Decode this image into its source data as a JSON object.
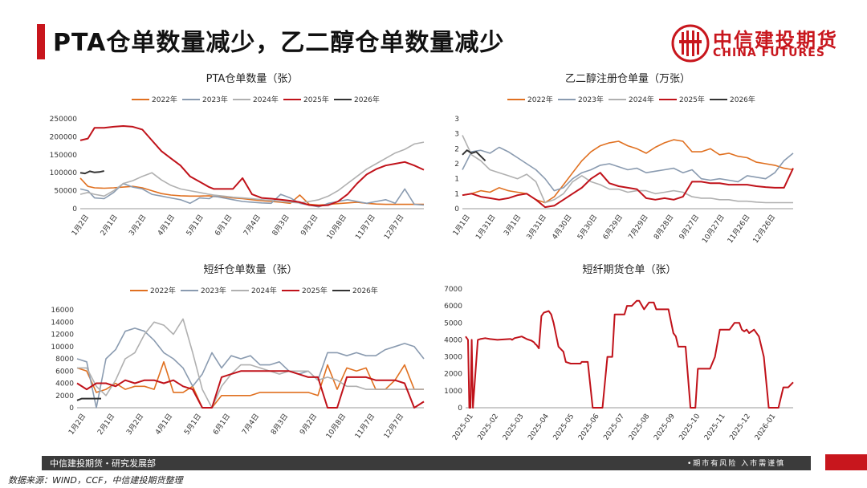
{
  "page": {
    "title": "PTA仓单数量减少，乙二醇仓单数量减少",
    "accent": "#c8161d"
  },
  "logo": {
    "name_cn": "中信建投期货",
    "name_en": "CHINA FUTURES",
    "icon": "china-futures-logo"
  },
  "footer": {
    "left": "中信建投期货・研究发展部",
    "right": "•期市有风险  入市需谨慎",
    "source": "数据来源：WIND，CCF，中信建投期货整理"
  },
  "series_colors": {
    "2022年": "#e07020",
    "2023年": "#8a9bb0",
    "2024年": "#b0b0b0",
    "2025年": "#c0121a",
    "2026年": "#333333",
    "futures": "#c0121a"
  },
  "chart_data": [
    {
      "type": "line",
      "title": "PTA仓单数量（张）",
      "legend": "top",
      "ylim": [
        0,
        250000
      ],
      "yticks": [
        "0",
        "50000",
        "100000",
        "150000",
        "200000",
        "250000"
      ],
      "xticks": [
        "1月2日",
        "2月1日",
        "3月2日",
        "4月1日",
        "5月1日",
        "6月1日",
        "7月4日",
        "8月3日",
        "9月2日",
        "10月8日",
        "11月7日",
        "12月7日"
      ],
      "x": [
        0,
        8,
        15,
        25,
        35,
        45,
        55,
        65,
        75,
        85,
        95,
        105,
        115,
        125,
        135,
        140,
        150,
        160,
        170,
        180,
        190,
        200,
        210,
        220,
        230,
        240,
        250,
        260,
        270,
        280,
        290,
        300,
        310,
        320,
        330,
        340,
        350,
        360
      ],
      "series": [
        {
          "name": "2022年",
          "values": [
            85000,
            62000,
            58000,
            57000,
            58000,
            60000,
            62000,
            58000,
            50000,
            42000,
            38000,
            36000,
            35000,
            35000,
            36000,
            34000,
            33000,
            30000,
            28000,
            25000,
            22000,
            20000,
            18000,
            15000,
            38000,
            12000,
            10000,
            12000,
            14000,
            16000,
            18000,
            15000,
            13000,
            12000,
            12000,
            12000,
            12000,
            12000
          ]
        },
        {
          "name": "2023年",
          "values": [
            55000,
            50000,
            30000,
            28000,
            45000,
            70000,
            60000,
            55000,
            40000,
            35000,
            30000,
            25000,
            15000,
            30000,
            28000,
            35000,
            30000,
            25000,
            20000,
            18000,
            16000,
            15000,
            40000,
            30000,
            15000,
            10000,
            5000,
            15000,
            20000,
            25000,
            20000,
            15000,
            20000,
            25000,
            15000,
            55000,
            12000,
            10000
          ]
        },
        {
          "name": "2024年",
          "values": [
            40000,
            45000,
            40000,
            35000,
            50000,
            70000,
            78000,
            90000,
            100000,
            80000,
            65000,
            55000,
            50000,
            45000,
            40000,
            38000,
            35000,
            32000,
            30000,
            28000,
            25000,
            23000,
            20000,
            18000,
            16000,
            20000,
            25000,
            35000,
            50000,
            70000,
            90000,
            110000,
            125000,
            140000,
            155000,
            165000,
            180000,
            185000
          ]
        },
        {
          "name": "2025年",
          "values": [
            190000,
            195000,
            225000,
            225000,
            228000,
            230000,
            228000,
            220000,
            190000,
            160000,
            140000,
            120000,
            90000,
            75000,
            60000,
            55000,
            55000,
            55000,
            85000,
            40000,
            30000,
            28000,
            25000,
            22000,
            18000,
            10000,
            8000,
            10000,
            20000,
            40000,
            70000,
            95000,
            110000,
            120000,
            125000,
            130000,
            120000,
            108000
          ]
        }
      ],
      "series_2026": {
        "name": "2026年",
        "x": [
          0,
          5,
          10,
          15,
          20,
          25
        ],
        "values": [
          100000,
          98000,
          104000,
          101000,
          102000,
          105000
        ]
      }
    },
    {
      "type": "line",
      "title": "乙二醇注册仓单量（万张）",
      "legend": "top",
      "ylim": [
        0,
        3
      ],
      "yticks": [
        "0",
        "1",
        "1",
        "2",
        "2",
        "3",
        "3"
      ],
      "xticks": [
        "1月1日",
        "1月31日",
        "3月1日",
        "3月31日",
        "4月30日",
        "5月30日",
        "6月29日",
        "7月29日",
        "8月28日",
        "9月27日",
        "10月27日",
        "11月26日",
        "12月26日"
      ],
      "x": [
        0,
        10,
        20,
        30,
        40,
        50,
        60,
        70,
        80,
        90,
        100,
        110,
        120,
        130,
        140,
        150,
        160,
        170,
        180,
        190,
        200,
        210,
        220,
        230,
        240,
        250,
        260,
        270,
        280,
        290,
        300,
        310,
        320,
        330,
        340,
        350,
        360
      ],
      "series": [
        {
          "name": "2022年",
          "values": [
            0.45,
            0.5,
            0.6,
            0.55,
            0.7,
            0.6,
            0.55,
            0.5,
            0.3,
            0.2,
            0.4,
            0.8,
            1.2,
            1.6,
            1.9,
            2.1,
            2.2,
            2.25,
            2.1,
            2.0,
            1.85,
            2.05,
            2.2,
            2.3,
            2.25,
            1.9,
            1.9,
            2.0,
            1.8,
            1.85,
            1.75,
            1.7,
            1.55,
            1.5,
            1.45,
            1.35,
            1.3
          ]
        },
        {
          "name": "2023年",
          "values": [
            1.3,
            1.9,
            1.95,
            1.85,
            2.05,
            1.9,
            1.7,
            1.5,
            1.3,
            1.0,
            0.6,
            0.7,
            1.0,
            1.2,
            1.3,
            1.45,
            1.5,
            1.4,
            1.3,
            1.35,
            1.2,
            1.25,
            1.3,
            1.35,
            1.2,
            1.3,
            1.0,
            0.95,
            1.0,
            0.95,
            0.9,
            1.1,
            1.05,
            1.0,
            1.2,
            1.6,
            1.85
          ]
        },
        {
          "name": "2024年",
          "values": [
            2.45,
            1.8,
            1.6,
            1.3,
            1.2,
            1.1,
            1.0,
            1.15,
            0.9,
            0.2,
            0.3,
            0.5,
            0.9,
            1.1,
            0.9,
            0.8,
            0.65,
            0.65,
            0.55,
            0.6,
            0.6,
            0.5,
            0.55,
            0.6,
            0.55,
            0.4,
            0.35,
            0.35,
            0.3,
            0.3,
            0.25,
            0.25,
            0.22,
            0.2,
            0.2,
            0.2,
            0.2
          ]
        },
        {
          "name": "2025年",
          "values": [
            0.45,
            0.5,
            0.4,
            0.35,
            0.3,
            0.35,
            0.45,
            0.5,
            0.3,
            0.05,
            0.1,
            0.3,
            0.5,
            0.7,
            1.0,
            1.2,
            0.85,
            0.75,
            0.7,
            0.65,
            0.35,
            0.3,
            0.35,
            0.3,
            0.4,
            0.9,
            0.9,
            0.85,
            0.85,
            0.8,
            0.8,
            0.8,
            0.75,
            0.72,
            0.7,
            0.7,
            1.35
          ]
        }
      ],
      "series_2026": {
        "name": "2026年",
        "x": [
          0,
          5,
          10,
          15,
          20,
          25
        ],
        "values": [
          1.8,
          1.95,
          1.85,
          1.9,
          1.75,
          1.6
        ]
      }
    },
    {
      "type": "line",
      "title": "短纤仓单数量（张）",
      "legend": "top",
      "ylim": [
        0,
        16000
      ],
      "yticks": [
        "0",
        "2000",
        "4000",
        "6000",
        "8000",
        "10000",
        "12000",
        "14000",
        "16000"
      ],
      "xticks": [
        "1月2日",
        "2月1日",
        "3月2日",
        "4月1日",
        "5月1日",
        "6月1日",
        "7月4日",
        "8月3日",
        "9月2日",
        "10月8日",
        "11月7日",
        "12月7日"
      ],
      "x": [
        0,
        10,
        20,
        30,
        40,
        50,
        60,
        70,
        80,
        90,
        100,
        110,
        120,
        130,
        140,
        150,
        160,
        170,
        180,
        190,
        200,
        210,
        220,
        230,
        240,
        250,
        260,
        270,
        280,
        290,
        300,
        310,
        320,
        330,
        340,
        350,
        360
      ],
      "series": [
        {
          "name": "2022年",
          "values": [
            6500,
            6000,
            2500,
            3000,
            4000,
            3000,
            3500,
            3500,
            3000,
            7500,
            2500,
            2500,
            3500,
            0,
            0,
            2000,
            2000,
            2000,
            2000,
            2500,
            2500,
            2500,
            2500,
            2500,
            2500,
            2000,
            7000,
            3000,
            6500,
            6000,
            6500,
            3000,
            3000,
            4500,
            7000,
            3000,
            3000
          ]
        },
        {
          "name": "2023年",
          "values": [
            8000,
            7500,
            0,
            8000,
            9500,
            12500,
            13000,
            12500,
            11000,
            9000,
            8000,
            6500,
            3500,
            5500,
            9000,
            6500,
            8500,
            8000,
            8500,
            7000,
            7000,
            7500,
            6000,
            5500,
            6000,
            4500,
            9000,
            9000,
            8500,
            9000,
            8500,
            8500,
            9500,
            10000,
            10500,
            10000,
            8000
          ]
        },
        {
          "name": "2024年",
          "values": [
            6500,
            6500,
            3500,
            2000,
            4500,
            8000,
            9000,
            12000,
            14000,
            13500,
            12000,
            14500,
            9000,
            3000,
            0,
            3500,
            5500,
            7000,
            7000,
            6500,
            6000,
            5500,
            6000,
            6000,
            6000,
            4500,
            5000,
            4500,
            3500,
            3500,
            3000,
            3000,
            3000,
            3000,
            3000,
            3000,
            3000
          ]
        },
        {
          "name": "2025年",
          "values": [
            4000,
            3000,
            4000,
            4000,
            3500,
            4500,
            4000,
            4500,
            4500,
            4000,
            4500,
            3500,
            3000,
            0,
            0,
            5000,
            5500,
            6000,
            6000,
            6000,
            6000,
            6000,
            6000,
            5500,
            5000,
            5000,
            0,
            0,
            5000,
            5000,
            5000,
            4500,
            4500,
            4500,
            4000,
            0,
            1000
          ]
        }
      ],
      "series_2026": {
        "name": "2026年",
        "x": [
          0,
          5,
          10,
          15,
          20,
          25
        ],
        "values": [
          1200,
          1500,
          1500,
          1500,
          1500,
          1500
        ]
      }
    },
    {
      "type": "line",
      "title": "短纤期货仓单（张）",
      "legend": "none",
      "ylim": [
        0,
        7000
      ],
      "yticks": [
        "0",
        "1000",
        "2000",
        "3000",
        "4000",
        "5000",
        "6000",
        "7000"
      ],
      "xticks": [
        "2025-01",
        "2025-02",
        "2025-03",
        "2025-04",
        "2025-05",
        "2025-06",
        "2025-07",
        "2025-08",
        "2025-09",
        "2025-10",
        "2025-11",
        "2025-12",
        "2026-01"
      ],
      "x": [
        0,
        0.1,
        0.15,
        0.2,
        0.25,
        0.3,
        0.5,
        0.6,
        0.8,
        1.0,
        1.3,
        1.8,
        1.85,
        1.9,
        2.0,
        2.3,
        2.5,
        2.7,
        2.8,
        2.85,
        2.9,
        2.95,
        3.0,
        3.1,
        3.2,
        3.4,
        3.5,
        3.6,
        3.8,
        4.0,
        4.1,
        4.3,
        4.5,
        4.6,
        4.7,
        4.75,
        4.8,
        5.0,
        5.2,
        5.4,
        5.6,
        5.8,
        6.0,
        6.1,
        6.2,
        6.4,
        6.5,
        6.6,
        6.8,
        7.0,
        7.1,
        7.3,
        7.5,
        7.7,
        7.8,
        8.0,
        8.2,
        8.3,
        8.5,
        8.6,
        8.7,
        8.8,
        9.0,
        9.2,
        9.4,
        9.5,
        9.6,
        9.8,
        10.0,
        10.2,
        10.4,
        10.6,
        10.8,
        11.0,
        11.2,
        11.3,
        11.4,
        11.5,
        11.6,
        11.8,
        12.0,
        12.2,
        12.4,
        12.6,
        12.8,
        13.0,
        13.2,
        13.4
      ],
      "values": [
        4200,
        4000,
        0,
        0,
        4000,
        0,
        4000,
        4050,
        4100,
        4050,
        4000,
        4050,
        4050,
        4000,
        4100,
        4200,
        4050,
        3950,
        3850,
        3750,
        3700,
        3600,
        3500,
        5400,
        5600,
        5700,
        5500,
        5000,
        3600,
        3300,
        2700,
        2600,
        2600,
        2600,
        2600,
        2700,
        2700,
        2700,
        0,
        0,
        0,
        3000,
        3000,
        5500,
        5500,
        5500,
        5500,
        6000,
        6000,
        6300,
        6300,
        5800,
        6200,
        6200,
        5800,
        5800,
        5800,
        5800,
        4400,
        4200,
        3600,
        3600,
        3600,
        0,
        0,
        2300,
        2300,
        2300,
        2300,
        3000,
        4600,
        4600,
        4600,
        5000,
        5000,
        4600,
        4500,
        4600,
        4400,
        4600,
        4200,
        3000,
        0,
        0,
        0,
        1200,
        1200,
        1500
      ]
    }
  ]
}
